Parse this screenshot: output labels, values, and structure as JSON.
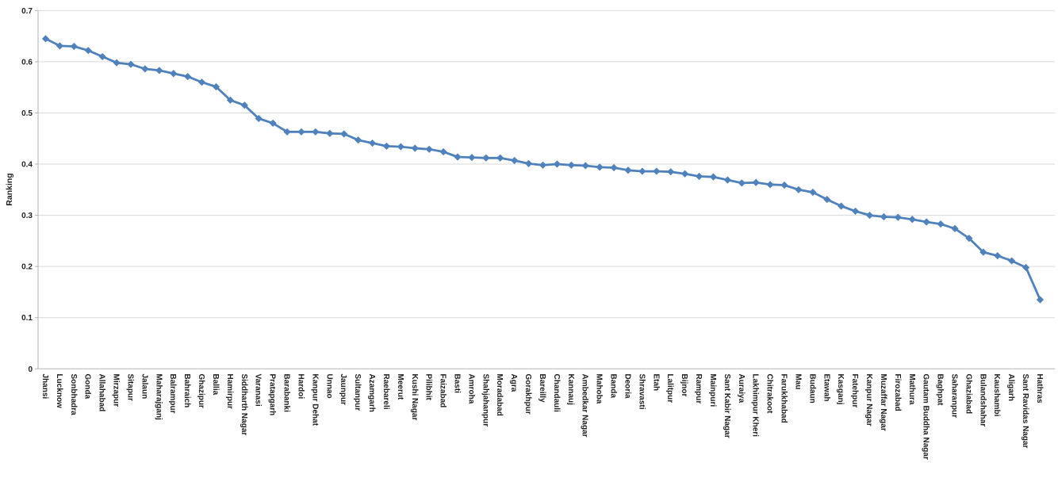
{
  "chart_data": {
    "type": "line",
    "title": "",
    "xlabel": "",
    "ylabel": "Ranking",
    "ylim": [
      0,
      0.7
    ],
    "ytick_step": 0.1,
    "y_tick_labels": [
      "0",
      "0.1",
      "0.2",
      "0.3",
      "0.4",
      "0.5",
      "0.6",
      "0.7"
    ],
    "grid": "horizontal",
    "legend": "none",
    "marker": "diamond",
    "categories": [
      "Jhansi",
      "Lucknow",
      "Sonbhadra",
      "Gonda",
      "Allahabad",
      "Mirzapur",
      "Sitapur",
      "Jalaun",
      "Maharajganj",
      "Balrampur",
      "Bahraich",
      "Ghazipur",
      "Ballia",
      "Hamirpur",
      "Siddharth Nagar",
      "Varanasi",
      "Pratapgarh",
      "Barabanki",
      "Hardoi",
      "Kanpur Dehat",
      "Unnao",
      "Jaunpur",
      "Sultanpur",
      "Azamgarh",
      "Raebareli",
      "Meerut",
      "Kushi Nagar",
      "Pilibhit",
      "Faizabad",
      "Basti",
      "Amroha",
      "Shahjahanpur",
      "Moradabad",
      "Agra",
      "Gorakhpur",
      "Bareilly",
      "Chandauli",
      "Kannauj",
      "Ambedkar Nagar",
      "Mahoba",
      "Banda",
      "Deoria",
      "Shravasti",
      "Etah",
      "Lalitpur",
      "Bijnor",
      "Rampur",
      "Mainpuri",
      "Sant Kabir Nagar",
      "Auraiya",
      "Lakhimpur Kheri",
      "Chitrakoot",
      "Farukkhabad",
      "Mau",
      "Budaun",
      "Etawah",
      "Kasganj",
      "Fatehpur",
      "Kanpur Nagar",
      "Muzaffar Nagar",
      "Firozabad",
      "Mathura",
      "Gautam Buddha Nagar",
      "Baghpat",
      "Saharanpur",
      "Ghaziabad",
      "Bulandshahar",
      "Kaushambi",
      "Aligarh",
      "Sant Ravidas Nagar",
      "Hathras"
    ],
    "values": [
      0.645,
      0.631,
      0.63,
      0.622,
      0.61,
      0.598,
      0.595,
      0.586,
      0.583,
      0.577,
      0.571,
      0.56,
      0.551,
      0.525,
      0.515,
      0.489,
      0.48,
      0.463,
      0.463,
      0.463,
      0.46,
      0.459,
      0.447,
      0.441,
      0.435,
      0.434,
      0.431,
      0.429,
      0.424,
      0.414,
      0.413,
      0.412,
      0.412,
      0.407,
      0.401,
      0.398,
      0.4,
      0.398,
      0.397,
      0.394,
      0.393,
      0.388,
      0.386,
      0.386,
      0.385,
      0.381,
      0.376,
      0.375,
      0.369,
      0.363,
      0.364,
      0.36,
      0.359,
      0.35,
      0.345,
      0.331,
      0.318,
      0.308,
      0.3,
      0.297,
      0.296,
      0.292,
      0.287,
      0.283,
      0.274,
      0.255,
      0.228,
      0.221,
      0.211,
      0.198,
      0.135
    ],
    "colors": {
      "series": "#4F81BD",
      "gridline": "#D9D9D9",
      "axis_line": "#B3B3B3",
      "tick_text": "#1F1F1F",
      "background": "#FFFFFF"
    }
  }
}
